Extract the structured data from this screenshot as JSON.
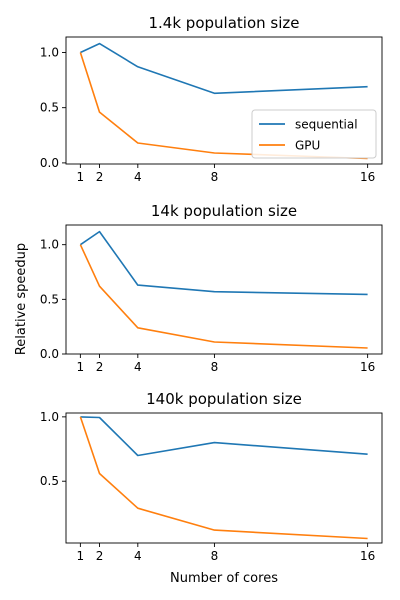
{
  "figure": {
    "ylabel": "Relative speedup",
    "xlabel": "Number of cores"
  },
  "chart_data": [
    {
      "type": "line",
      "title": "1.4k population size",
      "x": [
        1,
        2,
        4,
        8,
        16
      ],
      "xticks": [
        "1",
        "2",
        "4",
        "8",
        "16"
      ],
      "xlim": [
        0.25,
        16.75
      ],
      "ylim": [
        -0.01,
        1.14
      ],
      "yticks": [
        0.0,
        0.5,
        1.0
      ],
      "ytick_labels": [
        "0.0",
        "0.5",
        "1.0"
      ],
      "legend": {
        "placement": "lower-right",
        "entries": [
          "sequential",
          "GPU"
        ]
      },
      "series": [
        {
          "name": "sequential",
          "color": "#1f77b4",
          "values": [
            1.0,
            1.08,
            0.87,
            0.63,
            0.69
          ]
        },
        {
          "name": "GPU",
          "color": "#ff7f0e",
          "values": [
            1.0,
            0.46,
            0.18,
            0.09,
            0.04
          ]
        }
      ]
    },
    {
      "type": "line",
      "title": "14k population size",
      "x": [
        1,
        2,
        4,
        8,
        16
      ],
      "xticks": [
        "1",
        "2",
        "4",
        "8",
        "16"
      ],
      "xlim": [
        0.25,
        16.75
      ],
      "ylim": [
        0.0,
        1.18
      ],
      "yticks": [
        0.0,
        0.5,
        1.0
      ],
      "ytick_labels": [
        "0.0",
        "0.5",
        "1.0"
      ],
      "series": [
        {
          "name": "sequential",
          "color": "#1f77b4",
          "values": [
            1.0,
            1.12,
            0.63,
            0.57,
            0.545
          ]
        },
        {
          "name": "GPU",
          "color": "#ff7f0e",
          "values": [
            1.0,
            0.62,
            0.24,
            0.11,
            0.055
          ]
        }
      ]
    },
    {
      "type": "line",
      "title": "140k population size",
      "x": [
        1,
        2,
        4,
        8,
        16
      ],
      "xticks": [
        "1",
        "2",
        "4",
        "8",
        "16"
      ],
      "xlim": [
        0.25,
        16.75
      ],
      "ylim": [
        0.02,
        1.03
      ],
      "yticks": [
        0.5,
        1.0
      ],
      "ytick_labels": [
        "0.5",
        "1.0"
      ],
      "series": [
        {
          "name": "sequential",
          "color": "#1f77b4",
          "values": [
            1.0,
            0.995,
            0.7,
            0.8,
            0.71
          ]
        },
        {
          "name": "GPU",
          "color": "#ff7f0e",
          "values": [
            1.0,
            0.56,
            0.29,
            0.12,
            0.055
          ]
        }
      ]
    }
  ]
}
